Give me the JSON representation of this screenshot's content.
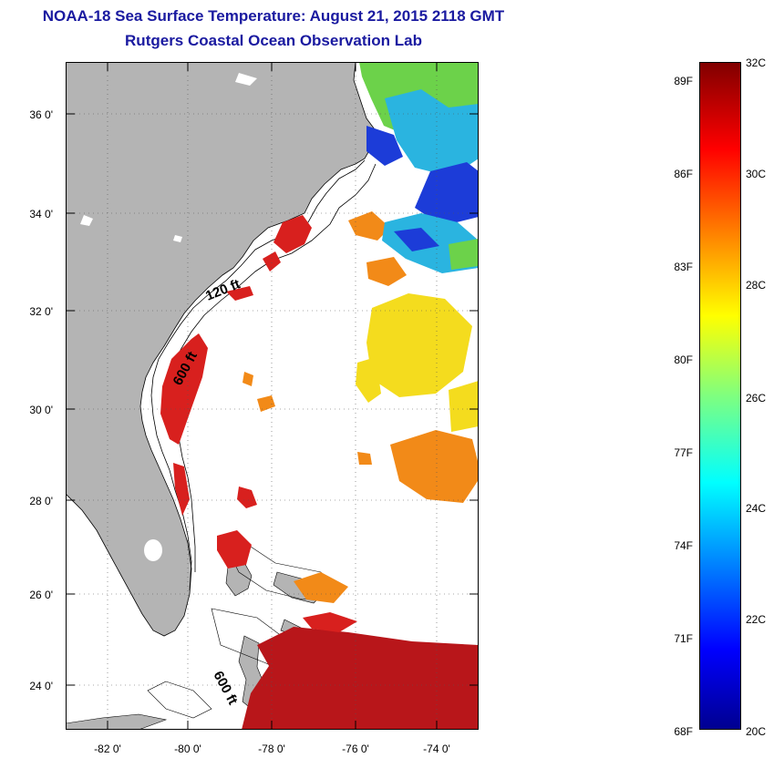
{
  "header": {
    "title": "NOAA-18 Sea Surface Temperature:  August 21, 2015 2118 GMT",
    "subtitle": "Rutgers Coastal Ocean Observation Lab"
  },
  "map": {
    "lat_labels": [
      "36 0'",
      "34 0'",
      "32 0'",
      "30 0'",
      "28 0'",
      "26 0'",
      "24 0'"
    ],
    "lon_labels": [
      "-82 0'",
      "-80 0'",
      "-78 0'",
      "-76 0'",
      "-74 0'"
    ],
    "contour_labels": [
      "120 ft",
      "600 ft",
      "600 ft"
    ],
    "colors": {
      "land": "#b4b4b4",
      "ocean": "#ffffff"
    }
  },
  "colorbar": {
    "fahrenheit_labels": [
      "89F",
      "86F",
      "83F",
      "80F",
      "77F",
      "74F",
      "71F",
      "68F"
    ],
    "celsius_labels": [
      "32C",
      "30C",
      "28C",
      "26C",
      "24C",
      "22C",
      "20C"
    ],
    "range_c": [
      20,
      32
    ]
  }
}
